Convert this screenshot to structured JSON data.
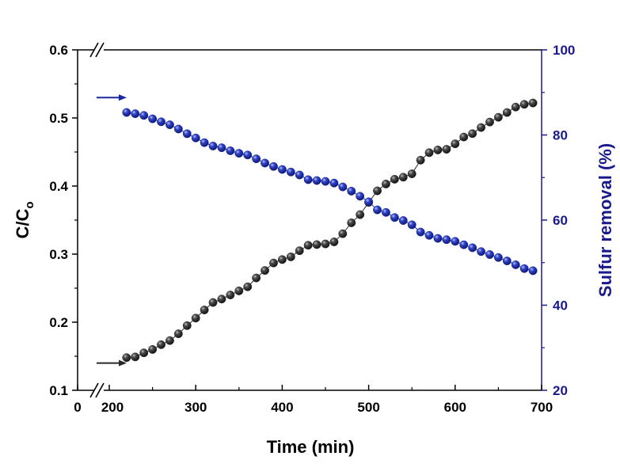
{
  "chart_data": {
    "type": "scatter",
    "xlabel": "Time (min)",
    "ylabel_main": "C/C",
    "ylabel_sub": "o",
    "ylabel_right": "Sulfur removal (%)",
    "xlim": [
      0,
      700
    ],
    "x_break_between": [
      0,
      200
    ],
    "ylim_left": [
      0.1,
      0.6
    ],
    "ylim_right": [
      20,
      100
    ],
    "y_break_between": [
      0.1,
      0.6
    ],
    "x_ticks": [
      0,
      200,
      300,
      400,
      500,
      600,
      700
    ],
    "y_ticks_left": [
      0.1,
      0.2,
      0.3,
      0.4,
      0.5,
      0.6
    ],
    "y_ticks_right": [
      20,
      40,
      60,
      80,
      100
    ],
    "colors": {
      "cco_series": "#2a2a2a",
      "sulfur_series": "#1a2a9c",
      "right_axis": "#1a1a8c",
      "left_axis": "#000000"
    },
    "arrows": [
      {
        "points_to": "right_axis",
        "series": "sulfur_series"
      },
      {
        "points_to": "right_axis",
        "series": "cco_series"
      }
    ],
    "series": [
      {
        "axis": "left",
        "color": "#2a2a2a",
        "x": [
          220,
          230,
          240,
          250,
          260,
          270,
          280,
          290,
          300,
          310,
          320,
          330,
          340,
          350,
          360,
          370,
          380,
          390,
          400,
          410,
          420,
          430,
          440,
          450,
          460,
          470,
          480,
          490,
          500,
          510,
          520,
          530,
          540,
          550,
          560,
          570,
          580,
          590,
          600,
          610,
          620,
          630,
          640,
          650,
          660,
          670,
          680,
          690
        ],
        "y": [
          0.148,
          0.149,
          0.155,
          0.16,
          0.167,
          0.173,
          0.183,
          0.195,
          0.206,
          0.218,
          0.229,
          0.234,
          0.24,
          0.246,
          0.252,
          0.265,
          0.276,
          0.287,
          0.292,
          0.296,
          0.305,
          0.313,
          0.314,
          0.315,
          0.318,
          0.33,
          0.346,
          0.358,
          0.376,
          0.393,
          0.403,
          0.41,
          0.413,
          0.418,
          0.438,
          0.449,
          0.453,
          0.454,
          0.462,
          0.472,
          0.477,
          0.486,
          0.494,
          0.501,
          0.508,
          0.516,
          0.52,
          0.522
        ]
      },
      {
        "axis": "right",
        "color": "#1a2a9c",
        "x": [
          220,
          230,
          240,
          250,
          260,
          270,
          280,
          290,
          300,
          310,
          320,
          330,
          340,
          350,
          360,
          370,
          380,
          390,
          400,
          410,
          420,
          430,
          440,
          450,
          460,
          470,
          480,
          490,
          500,
          510,
          520,
          530,
          540,
          550,
          560,
          570,
          580,
          590,
          600,
          610,
          620,
          630,
          640,
          650,
          660,
          670,
          680,
          690
        ],
        "y": [
          85.3,
          85.0,
          84.6,
          83.8,
          83.1,
          82.4,
          81.4,
          80.3,
          79.3,
          78.2,
          77.4,
          77.0,
          76.3,
          75.7,
          75.3,
          74.4,
          73.4,
          72.6,
          71.9,
          71.3,
          70.6,
          69.5,
          69.3,
          69.1,
          68.7,
          67.8,
          66.8,
          65.6,
          64.3,
          62.4,
          61.8,
          60.6,
          59.9,
          58.9,
          57.2,
          56.4,
          55.7,
          55.4,
          55.0,
          54.2,
          53.5,
          52.6,
          51.9,
          51.2,
          50.4,
          49.5,
          48.6,
          48.1
        ]
      }
    ]
  }
}
